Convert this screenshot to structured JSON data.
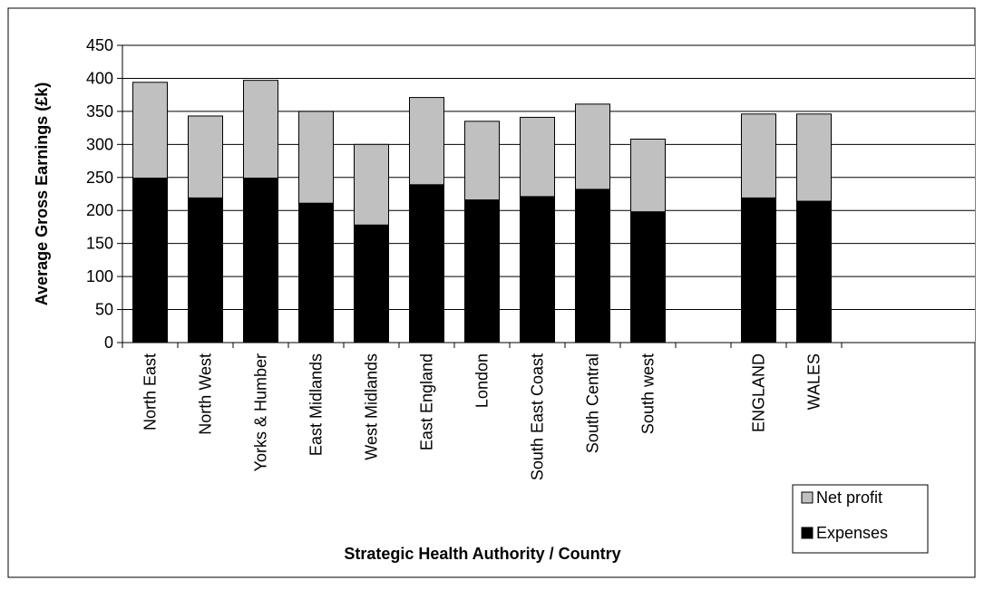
{
  "chart_data": {
    "type": "bar",
    "stacked": true,
    "title": "",
    "xlabel": "Strategic Health Authority / Country",
    "ylabel": "Average Gross Earnings (£k)",
    "ylim": [
      0,
      450
    ],
    "yticks": [
      0,
      50,
      100,
      150,
      200,
      250,
      300,
      350,
      400,
      450
    ],
    "grid": true,
    "legend_position": "bottom-right",
    "categories": [
      "North East",
      "North West",
      "Yorks & Humber",
      "East Midlands",
      "West Midlands",
      "East England",
      "London",
      "South East Coast",
      "South Central",
      "South west",
      "",
      "ENGLAND",
      "WALES"
    ],
    "series": [
      {
        "name": "Expenses",
        "color": "#000000",
        "values": [
          249,
          219,
          249,
          211,
          178,
          239,
          216,
          221,
          232,
          198,
          null,
          219,
          214
        ]
      },
      {
        "name": "Net profit",
        "color": "#c0c0c0",
        "values": [
          145,
          124,
          148,
          139,
          122,
          132,
          119,
          120,
          129,
          110,
          null,
          127,
          132
        ]
      }
    ],
    "legend_order": [
      "Net profit",
      "Expenses"
    ]
  }
}
